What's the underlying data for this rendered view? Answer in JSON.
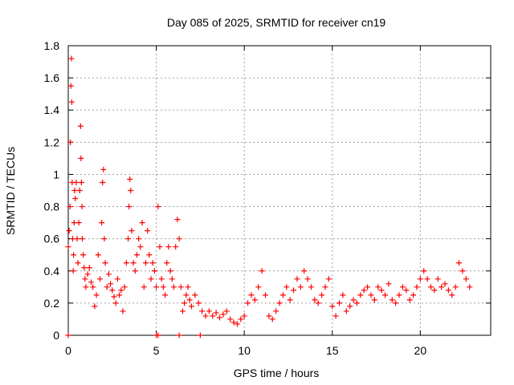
{
  "chart_data": {
    "type": "scatter",
    "title": "Day 085 of 2025, SRMTID for receiver cn19",
    "xlabel": "GPS time / hours",
    "ylabel": "SRMTID / TECUs",
    "xlim": [
      0,
      24
    ],
    "ylim": [
      0,
      1.8
    ],
    "xticks": [
      0,
      5,
      10,
      15,
      20
    ],
    "xtick_labels": [
      "0",
      "5",
      "10",
      "15",
      "20"
    ],
    "yticks": [
      0,
      0.2,
      0.4,
      0.6,
      0.8,
      1.0,
      1.2,
      1.4,
      1.6,
      1.8
    ],
    "ytick_labels": [
      "0",
      "0.2",
      "0.4",
      "0.6",
      "0.8",
      "1",
      "1.2",
      "1.4",
      "1.6",
      "1.8"
    ],
    "grid": true,
    "marker_color": "#ff0000",
    "series": [
      {
        "name": "SRMTID",
        "x": [
          0.0,
          0.05,
          0.1,
          0.12,
          0.15,
          0.18,
          0.2,
          0.22,
          0.25,
          0.28,
          0.3,
          0.33,
          0.36,
          0.4,
          0.45,
          0.5,
          0.55,
          0.6,
          0.65,
          0.7,
          0.72,
          0.75,
          0.78,
          0.8,
          0.85,
          0.9,
          0.95,
          1.0,
          1.1,
          1.2,
          1.3,
          1.4,
          1.5,
          1.6,
          1.7,
          1.8,
          1.9,
          1.95,
          2.0,
          2.05,
          2.1,
          2.2,
          2.3,
          2.4,
          2.5,
          2.6,
          2.7,
          2.8,
          2.9,
          3.0,
          3.1,
          3.2,
          3.3,
          3.4,
          3.45,
          3.5,
          3.55,
          3.6,
          3.7,
          3.8,
          3.9,
          4.0,
          4.1,
          4.2,
          4.3,
          4.4,
          4.5,
          4.6,
          4.7,
          4.8,
          4.9,
          5.0,
          5.1,
          5.2,
          5.3,
          5.4,
          5.5,
          5.6,
          5.7,
          5.8,
          5.9,
          6.0,
          6.1,
          6.2,
          6.3,
          6.4,
          6.5,
          6.6,
          6.7,
          6.8,
          6.9,
          7.0,
          7.2,
          7.4,
          7.6,
          7.8,
          8.0,
          8.2,
          8.4,
          8.6,
          8.8,
          9.0,
          9.2,
          9.4,
          9.6,
          9.8,
          10.0,
          10.2,
          10.4,
          10.6,
          10.8,
          11.0,
          11.2,
          11.4,
          11.6,
          11.8,
          12.0,
          12.2,
          12.4,
          12.6,
          12.8,
          13.0,
          13.2,
          13.4,
          13.6,
          13.8,
          14.0,
          14.2,
          14.4,
          14.6,
          14.8,
          15.0,
          15.2,
          15.4,
          15.6,
          15.8,
          16.0,
          16.2,
          16.4,
          16.6,
          16.8,
          17.0,
          17.2,
          17.4,
          17.6,
          17.8,
          18.0,
          18.2,
          18.4,
          18.6,
          18.8,
          19.0,
          19.2,
          19.4,
          19.6,
          19.8,
          20.0,
          20.2,
          20.4,
          20.6,
          20.8,
          21.0,
          21.2,
          21.4,
          21.6,
          21.8,
          22.0,
          22.2,
          22.4,
          22.6,
          22.8,
          0.0,
          5.0,
          5.1,
          6.3,
          7.5
        ],
        "y": [
          0.55,
          0.65,
          0.8,
          1.2,
          1.55,
          1.72,
          1.45,
          0.95,
          0.6,
          0.4,
          0.5,
          0.7,
          0.9,
          0.85,
          0.95,
          0.6,
          0.45,
          0.7,
          0.9,
          1.3,
          1.1,
          0.95,
          0.8,
          0.6,
          0.5,
          0.42,
          0.35,
          0.3,
          0.38,
          0.42,
          0.33,
          0.3,
          0.18,
          0.25,
          0.5,
          0.35,
          0.7,
          0.95,
          1.03,
          0.6,
          0.45,
          0.3,
          0.38,
          0.32,
          0.28,
          0.24,
          0.2,
          0.35,
          0.25,
          0.28,
          0.15,
          0.3,
          0.45,
          0.6,
          0.8,
          0.97,
          0.9,
          0.65,
          0.45,
          0.4,
          0.5,
          0.6,
          0.55,
          0.7,
          0.3,
          0.45,
          0.65,
          0.5,
          0.35,
          0.45,
          0.4,
          0.3,
          0.8,
          0.55,
          0.35,
          0.3,
          0.25,
          0.45,
          0.55,
          0.4,
          0.35,
          0.3,
          0.55,
          0.72,
          0.6,
          0.3,
          0.15,
          0.2,
          0.25,
          0.3,
          0.22,
          0.18,
          0.25,
          0.2,
          0.15,
          0.12,
          0.15,
          0.12,
          0.14,
          0.11,
          0.13,
          0.15,
          0.1,
          0.08,
          0.07,
          0.1,
          0.12,
          0.2,
          0.25,
          0.22,
          0.3,
          0.4,
          0.25,
          0.12,
          0.1,
          0.15,
          0.2,
          0.25,
          0.3,
          0.22,
          0.28,
          0.35,
          0.3,
          0.4,
          0.35,
          0.3,
          0.22,
          0.2,
          0.25,
          0.3,
          0.35,
          0.18,
          0.12,
          0.2,
          0.25,
          0.15,
          0.18,
          0.22,
          0.2,
          0.25,
          0.28,
          0.3,
          0.25,
          0.22,
          0.3,
          0.28,
          0.25,
          0.32,
          0.22,
          0.2,
          0.25,
          0.3,
          0.28,
          0.22,
          0.25,
          0.3,
          0.35,
          0.4,
          0.35,
          0.3,
          0.28,
          0.35,
          0.3,
          0.32,
          0.28,
          0.25,
          0.3,
          0.45,
          0.4,
          0.35,
          0.3,
          0.0,
          0.0,
          0.0,
          0.0,
          0.0
        ]
      }
    ]
  }
}
